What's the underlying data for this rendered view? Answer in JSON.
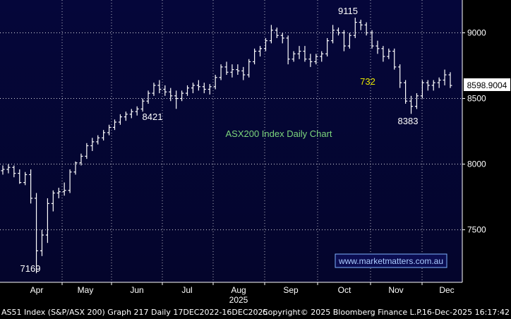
{
  "chart_data": {
    "type": "ohlc",
    "title": "ASX200 Index Daily Chart",
    "ylim": [
      7100,
      9250
    ],
    "y_ticks": [
      7500,
      8000,
      8500,
      9000
    ],
    "x_labels": [
      "Apr",
      "May",
      "Jun",
      "Jul",
      "Aug",
      "Sep",
      "Oct",
      "Nov",
      "Dec"
    ],
    "year_label": "2025",
    "last_price": "8598.9004",
    "grid": true,
    "annotations": [
      {
        "text": "9115",
        "x": "Oct",
        "y": 9115,
        "color": "#ffffff"
      },
      {
        "text": "8421",
        "x": "Jun",
        "y": 8421,
        "color": "#ffffff"
      },
      {
        "text": "732",
        "x": "Oct",
        "y": 8640,
        "color": "#e6e600"
      },
      {
        "text": "8383",
        "x": "Nov",
        "y": 8383,
        "color": "#ffffff"
      },
      {
        "text": "7169",
        "x": "Apr",
        "y": 7169,
        "color": "#ffffff"
      }
    ],
    "watermark": "www.marketmatters.com.au",
    "series": [
      {
        "values": [
          [
            7950,
            7990,
            7920,
            7960
          ],
          [
            7960,
            8000,
            7930,
            7975
          ],
          [
            7975,
            7990,
            7900,
            7930
          ],
          [
            7930,
            7960,
            7850,
            7860
          ],
          [
            7860,
            7940,
            7840,
            7920
          ],
          [
            7920,
            7960,
            7700,
            7740
          ],
          [
            7740,
            7780,
            7169,
            7340
          ],
          [
            7340,
            7500,
            7300,
            7460
          ],
          [
            7460,
            7740,
            7400,
            7700
          ],
          [
            7700,
            7800,
            7640,
            7780
          ],
          [
            7780,
            7820,
            7740,
            7790
          ],
          [
            7790,
            7860,
            7760,
            7800
          ],
          [
            7800,
            7960,
            7780,
            7940
          ],
          [
            7940,
            8020,
            7920,
            8010
          ],
          [
            8010,
            8080,
            7990,
            8060
          ],
          [
            8060,
            8160,
            8040,
            8140
          ],
          [
            8140,
            8200,
            8100,
            8170
          ],
          [
            8170,
            8220,
            8150,
            8200
          ],
          [
            8200,
            8260,
            8180,
            8240
          ],
          [
            8240,
            8300,
            8220,
            8280
          ],
          [
            8280,
            8340,
            8260,
            8320
          ],
          [
            8320,
            8380,
            8300,
            8360
          ],
          [
            8360,
            8400,
            8330,
            8380
          ],
          [
            8380,
            8420,
            8350,
            8400
          ],
          [
            8400,
            8440,
            8370,
            8420
          ],
          [
            8420,
            8500,
            8400,
            8480
          ],
          [
            8480,
            8560,
            8460,
            8540
          ],
          [
            8540,
            8620,
            8520,
            8600
          ],
          [
            8600,
            8640,
            8540,
            8570
          ],
          [
            8570,
            8600,
            8520,
            8550
          ],
          [
            8550,
            8580,
            8480,
            8520
          ],
          [
            8520,
            8560,
            8421,
            8500
          ],
          [
            8500,
            8560,
            8480,
            8540
          ],
          [
            8540,
            8600,
            8520,
            8580
          ],
          [
            8580,
            8620,
            8540,
            8600
          ],
          [
            8600,
            8640,
            8560,
            8590
          ],
          [
            8590,
            8620,
            8540,
            8570
          ],
          [
            8570,
            8610,
            8530,
            8590
          ],
          [
            8590,
            8680,
            8570,
            8660
          ],
          [
            8660,
            8760,
            8640,
            8740
          ],
          [
            8740,
            8780,
            8680,
            8700
          ],
          [
            8700,
            8760,
            8660,
            8720
          ],
          [
            8720,
            8760,
            8680,
            8710
          ],
          [
            8710,
            8740,
            8640,
            8680
          ],
          [
            8680,
            8800,
            8660,
            8780
          ],
          [
            8780,
            8880,
            8760,
            8860
          ],
          [
            8860,
            8900,
            8820,
            8880
          ],
          [
            8880,
            8960,
            8860,
            8940
          ],
          [
            8940,
            9060,
            8920,
            9020
          ],
          [
            9020,
            9040,
            8960,
            8980
          ],
          [
            8980,
            9000,
            8920,
            8960
          ],
          [
            8960,
            8980,
            8760,
            8800
          ],
          [
            8800,
            8860,
            8780,
            8840
          ],
          [
            8840,
            8900,
            8800,
            8860
          ],
          [
            8860,
            8900,
            8780,
            8800
          ],
          [
            8800,
            8840,
            8740,
            8780
          ],
          [
            8780,
            8840,
            8760,
            8820
          ],
          [
            8820,
            8860,
            8780,
            8840
          ],
          [
            8840,
            8960,
            8820,
            8940
          ],
          [
            8940,
            9060,
            8920,
            9020
          ],
          [
            9020,
            9040,
            8980,
            9000
          ],
          [
            9000,
            9020,
            8860,
            8900
          ],
          [
            8900,
            9000,
            8880,
            8980
          ],
          [
            8980,
            9115,
            8960,
            9080
          ],
          [
            9080,
            9100,
            9020,
            9060
          ],
          [
            9060,
            9080,
            8980,
            9000
          ],
          [
            9000,
            9020,
            8880,
            8900
          ],
          [
            8900,
            8940,
            8840,
            8880
          ],
          [
            8880,
            8900,
            8780,
            8820
          ],
          [
            8820,
            8880,
            8800,
            8860
          ],
          [
            8860,
            8880,
            8720,
            8740
          ],
          [
            8740,
            8760,
            8580,
            8620
          ],
          [
            8620,
            8640,
            8460,
            8480
          ],
          [
            8480,
            8520,
            8383,
            8440
          ],
          [
            8440,
            8540,
            8420,
            8520
          ],
          [
            8520,
            8640,
            8500,
            8620
          ],
          [
            8620,
            8640,
            8560,
            8600
          ],
          [
            8600,
            8640,
            8560,
            8620
          ],
          [
            8620,
            8660,
            8580,
            8640
          ],
          [
            8640,
            8720,
            8600,
            8680
          ],
          [
            8680,
            8700,
            8580,
            8599
          ]
        ]
      }
    ]
  },
  "footer": {
    "left": "AS51 Index (S&P/ASX 200) Graph 217 Daily 17DEC2022-16DEC2025",
    "center": "Copyright© 2025 Bloomberg Finance L.P.",
    "right": "16-Dec-2025 16:17:42"
  }
}
